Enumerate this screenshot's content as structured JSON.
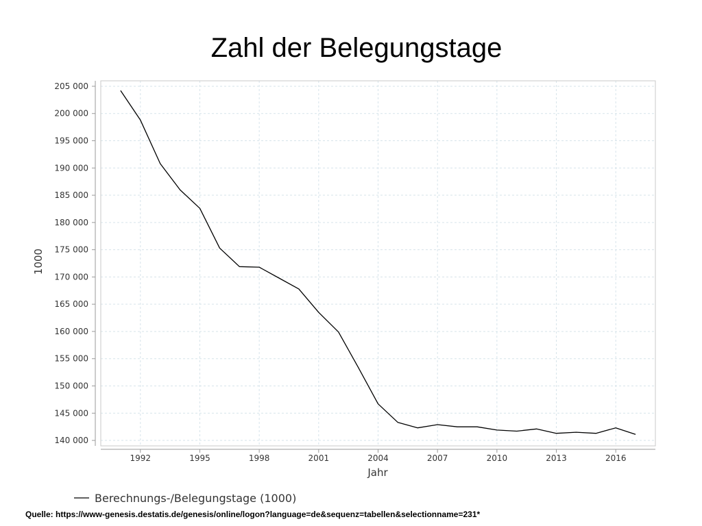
{
  "slide": {
    "title": "Zahl der Belegungstage",
    "source": "Quelle: https://www-genesis.destatis.de/genesis/online/logon?language=de&sequenz=tabellen&selectionname=231*"
  },
  "chart_data": {
    "type": "line",
    "xlabel": "Jahr",
    "ylabel": "1000",
    "xlim": [
      1990,
      2018
    ],
    "ylim": [
      139000,
      206000
    ],
    "x_ticks": [
      1992,
      1995,
      1998,
      2001,
      2004,
      2007,
      2010,
      2013,
      2016
    ],
    "y_ticks": [
      140000,
      145000,
      150000,
      155000,
      160000,
      165000,
      170000,
      175000,
      180000,
      185000,
      190000,
      195000,
      200000,
      205000
    ],
    "y_tick_labels": [
      "140 000",
      "145 000",
      "150 000",
      "155 000",
      "160 000",
      "165 000",
      "170 000",
      "175 000",
      "180 000",
      "185 000",
      "190 000",
      "195 000",
      "200 000",
      "205 000"
    ],
    "grid": true,
    "legend_position": "bottom-left",
    "series": [
      {
        "name": "Berechnungs-/Belegungstage (1000)",
        "color": "#000000",
        "x": [
          1991,
          1992,
          1993,
          1994,
          1995,
          1996,
          1997,
          1998,
          1999,
          2000,
          2001,
          2002,
          2003,
          2004,
          2005,
          2006,
          2007,
          2008,
          2009,
          2010,
          2011,
          2012,
          2013,
          2014,
          2015,
          2016,
          2017
        ],
        "y": [
          204200,
          198800,
          190800,
          186000,
          182600,
          175300,
          171900,
          171800,
          169800,
          167800,
          163500,
          159900,
          153400,
          146700,
          143300,
          142300,
          142900,
          142500,
          142500,
          141900,
          141700,
          142100,
          141300,
          141500,
          141300,
          142300,
          141100
        ]
      }
    ]
  }
}
